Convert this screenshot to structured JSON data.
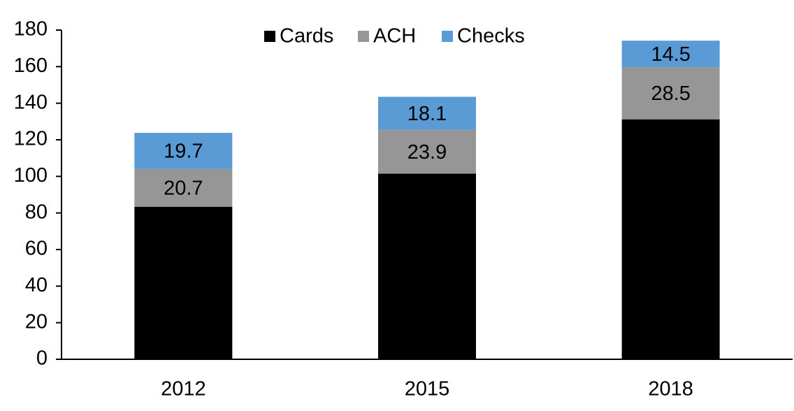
{
  "chart_data": {
    "type": "stacked_bar",
    "categories": [
      "2012",
      "2015",
      "2018"
    ],
    "series": [
      {
        "name": "Cards",
        "color": "#000000",
        "values": [
          83.4,
          101.5,
          131.2
        ]
      },
      {
        "name": "ACH",
        "color": "#969696",
        "values": [
          20.7,
          23.9,
          28.5
        ]
      },
      {
        "name": "Checks",
        "color": "#5b9bd5",
        "values": [
          19.7,
          18.1,
          14.5
        ]
      }
    ],
    "ylim": [
      0,
      180
    ],
    "yticks": [
      0,
      20,
      40,
      60,
      80,
      100,
      120,
      140,
      160,
      180
    ],
    "grid": false,
    "legend": "top"
  }
}
